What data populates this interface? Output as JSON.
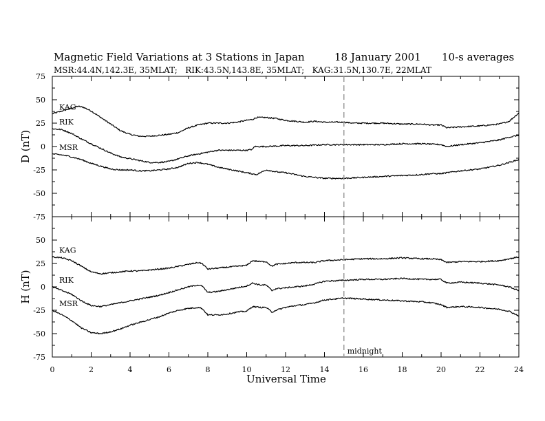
{
  "chart_data": {
    "type": "line",
    "title_left": "Magnetic Field Variations at 3 Stations in Japan",
    "title_date": "18 January 2001",
    "title_right": "10-s averages",
    "subtitle": "MSR:44.4N,142.3E, 35MLAT;   RIK:43.5N,143.8E, 35MLAT;   KAG:31.5N,130.7E, 22MLAT",
    "xlabel": "Universal Time",
    "xlim": [
      0,
      24
    ],
    "xticks": [
      "0",
      "2",
      "4",
      "6",
      "8",
      "10",
      "12",
      "14",
      "16",
      "18",
      "20",
      "22",
      "24"
    ],
    "annotation": {
      "x": 15,
      "text": "midnight"
    },
    "panels": [
      {
        "ylabel": "D (nT)",
        "ylim": [
          -75,
          75
        ],
        "yticks": [
          "75",
          "50",
          "25",
          "0",
          "-25",
          "-50",
          "-75"
        ],
        "series": [
          {
            "name": "KAG",
            "x": [
              0,
              0.5,
              1,
              1.3,
              1.6,
              2,
              2.5,
              3,
              3.5,
              4,
              4.5,
              5,
              5.5,
              6,
              6.5,
              7,
              7.5,
              8,
              8.5,
              9,
              9.5,
              10,
              10.3,
              10.5,
              11,
              11.5,
              12,
              12.5,
              13,
              13.5,
              14,
              14.5,
              15,
              15.5,
              16,
              17,
              18,
              19,
              19.5,
              20,
              20.3,
              21,
              22,
              23,
              23.5,
              24
            ],
            "values": [
              35,
              38,
              41,
              43,
              42,
              38,
              31,
              24,
              17,
              13,
              11,
              11,
              12,
              13,
              15,
              20,
              23,
              25,
              25,
              25,
              26,
              28,
              29,
              31,
              31,
              30,
              28,
              27,
              26,
              27,
              26,
              26,
              26,
              25,
              25,
              25,
              24,
              24,
              23,
              23,
              20,
              21,
              22,
              24,
              27,
              36
            ]
          },
          {
            "name": "RIK",
            "x": [
              0,
              0.5,
              1,
              1.5,
              2,
              2.5,
              3,
              3.5,
              4,
              4.5,
              5,
              5.5,
              6,
              6.5,
              7,
              7.5,
              8,
              8.5,
              9,
              9.5,
              10,
              10.3,
              10.4,
              11,
              12,
              13,
              14,
              15,
              16,
              17,
              18,
              19,
              20,
              20.3,
              21,
              22,
              23,
              23.5,
              24
            ],
            "values": [
              19,
              18,
              14,
              8,
              3,
              -2,
              -7,
              -11,
              -13,
              -15,
              -17,
              -17,
              -16,
              -13,
              -10,
              -8,
              -6,
              -4,
              -4,
              -4,
              -4,
              -3,
              0,
              0,
              1,
              1,
              2,
              2,
              2,
              2,
              3,
              3,
              2,
              0,
              2,
              4,
              7,
              10,
              12
            ]
          },
          {
            "name": "MSR",
            "x": [
              0,
              0.5,
              1,
              1.5,
              2,
              2.5,
              3,
              3.5,
              4,
              4.5,
              5,
              5.5,
              6,
              6.5,
              7,
              7.5,
              8,
              8.5,
              9,
              9.5,
              10,
              10.5,
              11,
              11.5,
              12,
              12.5,
              13,
              13.5,
              14,
              15,
              16,
              17,
              18,
              19,
              19.5,
              20,
              20.3,
              21,
              22,
              23,
              23.5,
              24
            ],
            "values": [
              -8,
              -9,
              -11,
              -14,
              -18,
              -21,
              -24,
              -25,
              -25,
              -26,
              -26,
              -25,
              -24,
              -22,
              -18,
              -17,
              -19,
              -22,
              -24,
              -26,
              -28,
              -30,
              -25,
              -27,
              -28,
              -30,
              -32,
              -33,
              -34,
              -34,
              -33,
              -32,
              -31,
              -30,
              -29,
              -29,
              -28,
              -26,
              -24,
              -20,
              -17,
              -14
            ]
          }
        ]
      },
      {
        "ylabel": "H (nT)",
        "ylim": [
          -75,
          75
        ],
        "yticks": [
          "75",
          "50",
          "25",
          "0",
          "-25",
          "-50",
          "-75"
        ],
        "series": [
          {
            "name": "KAG",
            "x": [
              0,
              0.5,
              1,
              1.5,
              2,
              2.5,
              3,
              3.5,
              4,
              4.5,
              5,
              5.5,
              6,
              6.5,
              7,
              7.5,
              7.7,
              8,
              8.5,
              9,
              9.5,
              10,
              10.3,
              10.7,
              11,
              11.3,
              11.5,
              12,
              12.5,
              13,
              13.5,
              14,
              15,
              16,
              17,
              18,
              19,
              19.5,
              20,
              20.3,
              21,
              22,
              23,
              23.5,
              24
            ],
            "values": [
              32,
              31,
              28,
              22,
              16,
              14,
              15,
              16,
              17,
              17,
              18,
              19,
              20,
              22,
              24,
              26,
              25,
              19,
              20,
              21,
              22,
              23,
              28,
              27,
              27,
              22,
              24,
              25,
              26,
              26,
              26,
              28,
              29,
              30,
              30,
              31,
              30,
              30,
              29,
              26,
              27,
              27,
              28,
              30,
              32
            ]
          },
          {
            "name": "RIK",
            "x": [
              0,
              0.5,
              1,
              1.5,
              2,
              2.5,
              3,
              3.5,
              4,
              4.5,
              5,
              5.5,
              6,
              6.5,
              7,
              7.5,
              7.7,
              8,
              8.5,
              9,
              9.5,
              10,
              10.3,
              10.7,
              11,
              11.3,
              11.5,
              12,
              12.5,
              13,
              13.5,
              14,
              15,
              16,
              17,
              18,
              19,
              19.5,
              20,
              20.3,
              21,
              22,
              23,
              23.5,
              24
            ],
            "values": [
              0,
              -4,
              -8,
              -15,
              -20,
              -21,
              -19,
              -17,
              -15,
              -13,
              -11,
              -9,
              -6,
              -3,
              0,
              2,
              1,
              -6,
              -5,
              -3,
              -1,
              1,
              4,
              2,
              2,
              -4,
              -2,
              -1,
              0,
              1,
              3,
              6,
              7,
              8,
              8,
              9,
              8,
              8,
              8,
              4,
              5,
              4,
              2,
              0,
              -4
            ]
          },
          {
            "name": "MSR",
            "x": [
              0,
              0.5,
              1,
              1.5,
              2,
              2.5,
              3,
              3.5,
              4,
              4.5,
              5,
              5.5,
              6,
              6.5,
              7,
              7.5,
              7.7,
              8,
              8.5,
              9,
              9.5,
              10,
              10.3,
              10.7,
              11,
              11.3,
              11.5,
              12,
              12.5,
              13,
              13.5,
              14,
              14.5,
              15,
              16,
              17,
              18,
              19,
              19.5,
              20,
              20.3,
              21,
              22,
              23,
              23.5,
              24
            ],
            "values": [
              -25,
              -30,
              -36,
              -44,
              -49,
              -50,
              -48,
              -45,
              -41,
              -38,
              -35,
              -32,
              -28,
              -25,
              -23,
              -22,
              -23,
              -30,
              -30,
              -29,
              -27,
              -26,
              -21,
              -22,
              -22,
              -27,
              -25,
              -22,
              -20,
              -19,
              -17,
              -14,
              -13,
              -12,
              -13,
              -14,
              -15,
              -16,
              -17,
              -19,
              -22,
              -21,
              -22,
              -24,
              -26,
              -31
            ]
          }
        ]
      }
    ]
  }
}
